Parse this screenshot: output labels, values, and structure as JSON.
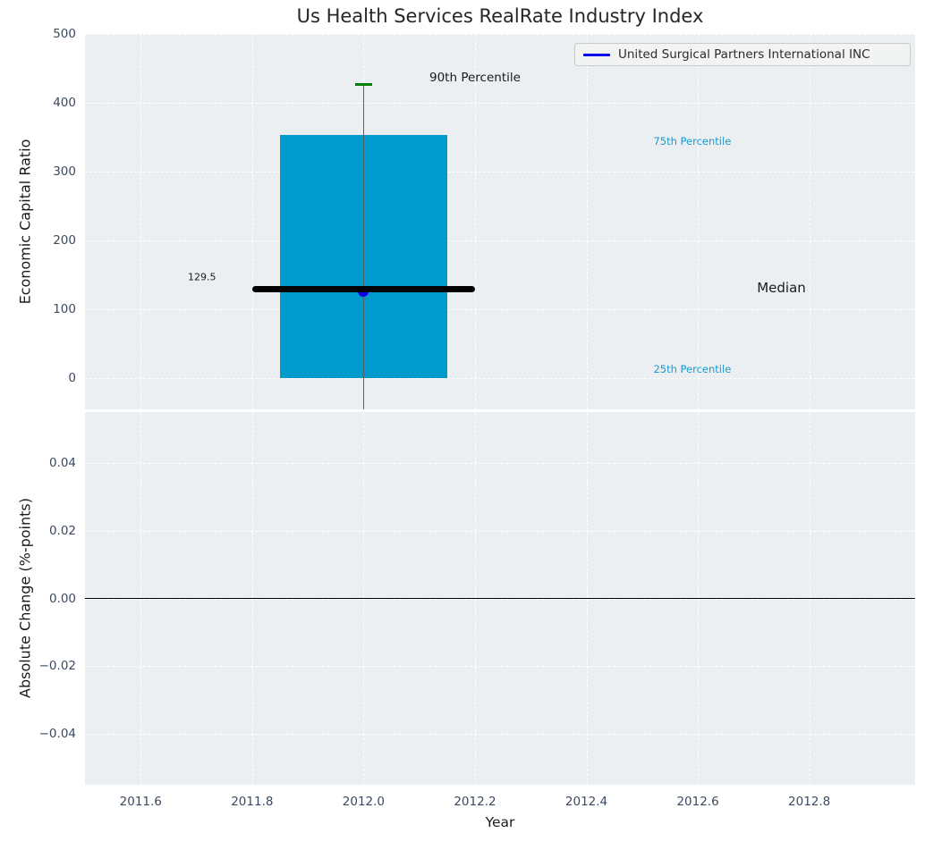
{
  "title": "Us Health Services RealRate Industry Index",
  "legend": {
    "series_label": "United Surgical Partners International INC",
    "line_color": "#0000ee"
  },
  "colors": {
    "plot_bg": "#eceff1",
    "grid": "#ffffff",
    "bar": "#009acd",
    "percentile_text": "#189bce",
    "green_cap": "#008000",
    "median_line": "#000000",
    "company_marker": "#0e00e6",
    "whisker": "#5a6066",
    "zero_line": "#000000",
    "tick_text": "#3b4a61",
    "dark_text": "#1a1a1a"
  },
  "chart_data": [
    {
      "type": "bar",
      "subplot": "top",
      "ylabel": "Economic Capital Ratio",
      "xlim": [
        2011.5,
        2012.99
      ],
      "ylim": [
        -46,
        500
      ],
      "yticks": {
        "values": [
          0,
          100,
          200,
          300,
          400,
          500
        ],
        "labels": [
          "0",
          "100",
          "200",
          "300",
          "400",
          "500"
        ]
      },
      "grid": true,
      "box": {
        "year": 2012.0,
        "p25": 0,
        "median": 129.5,
        "p75": 353,
        "p90": 427,
        "bar_x_span": [
          2011.85,
          2012.15
        ],
        "median_x_span": [
          2011.8,
          2012.2
        ],
        "whisker_clipped_at_bottom": true
      },
      "company_point": {
        "x": 2012.0,
        "y": 126
      },
      "annotations": [
        {
          "text": "90th Percentile",
          "x": 2012.2,
          "y": 436,
          "style": "dark-large"
        },
        {
          "text": "75th Percentile",
          "x": 2012.59,
          "y": 344,
          "style": "percentile"
        },
        {
          "text": "Median",
          "x": 2012.75,
          "y": 131,
          "style": "dark-xlarge"
        },
        {
          "text": "25th Percentile",
          "x": 2012.59,
          "y": 13,
          "style": "percentile"
        },
        {
          "text": "129.5",
          "x": 2011.71,
          "y": 146,
          "style": "dark-small"
        }
      ],
      "legend_position": "upper right"
    },
    {
      "type": "line",
      "subplot": "bottom",
      "ylabel": "Absolute Change (%-points)",
      "xlabel": "Year",
      "xlim": [
        2011.5,
        2012.99
      ],
      "ylim": [
        -0.055,
        0.055
      ],
      "yticks": {
        "values": [
          0.04,
          0.02,
          0.0,
          -0.02,
          -0.04
        ],
        "labels": [
          "0.04",
          "0.02",
          "0.00",
          "−0.02",
          "−0.04"
        ]
      },
      "xticks": {
        "values": [
          2011.6,
          2011.8,
          2012.0,
          2012.2,
          2012.4,
          2012.6,
          2012.8
        ],
        "labels": [
          "2011.6",
          "2011.8",
          "2012.0",
          "2012.2",
          "2012.4",
          "2012.6",
          "2012.8"
        ]
      },
      "grid": true,
      "zero_line": true,
      "series": []
    }
  ]
}
